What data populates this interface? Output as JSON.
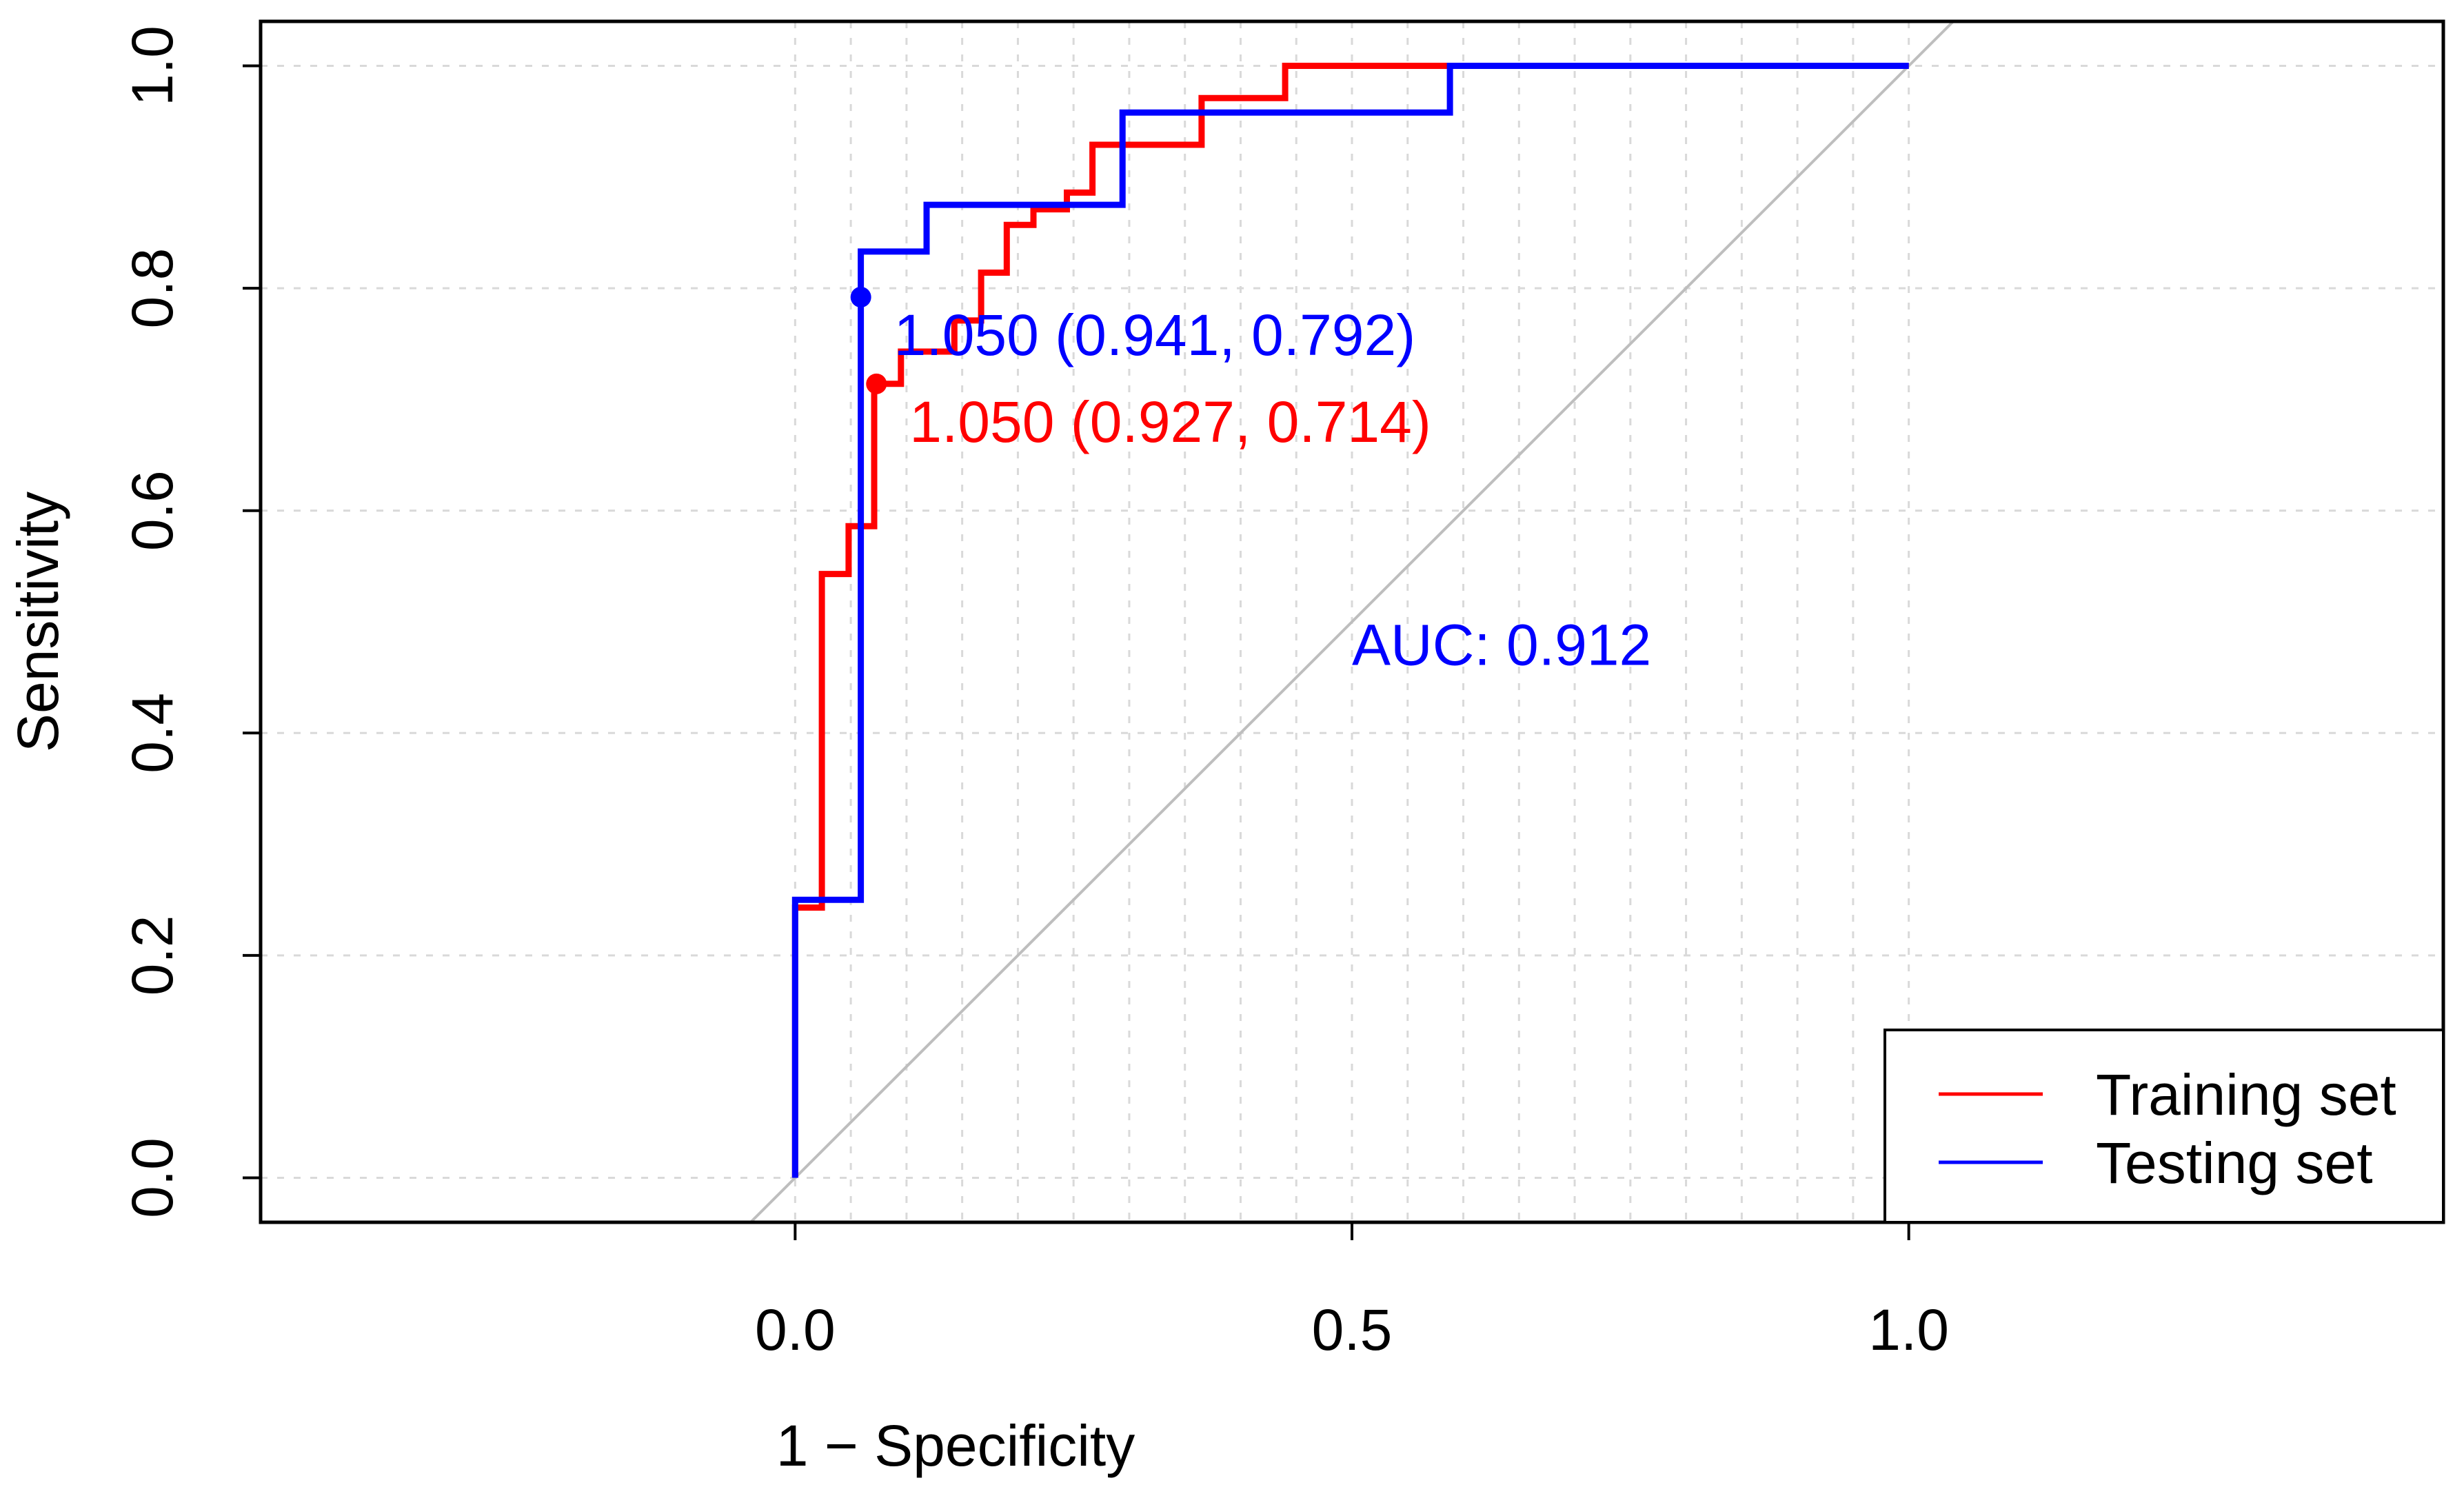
{
  "chart_data": {
    "type": "line",
    "title": "",
    "xlabel": "1 − Specificity",
    "ylabel": "Sensitivity",
    "xlim": [
      -0.48,
      1.48
    ],
    "ylim": [
      -0.04,
      1.04
    ],
    "x_ticks": [
      {
        "value": 0.0,
        "label": "0.0"
      },
      {
        "value": 0.5,
        "label": "0.5"
      },
      {
        "value": 1.0,
        "label": "1.0"
      }
    ],
    "y_ticks": [
      {
        "value": 0.0,
        "label": "0.0"
      },
      {
        "value": 0.2,
        "label": "0.2"
      },
      {
        "value": 0.4,
        "label": "0.4"
      },
      {
        "value": 0.6,
        "label": "0.6"
      },
      {
        "value": 0.8,
        "label": "0.8"
      },
      {
        "value": 1.0,
        "label": "1.0"
      }
    ],
    "grid": true,
    "grid_x": [
      0.0,
      0.05,
      0.1,
      0.15,
      0.2,
      0.25,
      0.3,
      0.35,
      0.4,
      0.45,
      0.5,
      0.55,
      0.6,
      0.65,
      0.7,
      0.75,
      0.8,
      0.85,
      0.9,
      0.95,
      1.0
    ],
    "grid_y": [
      0.0,
      0.2,
      0.4,
      0.6,
      0.8,
      1.0
    ],
    "reference_line": {
      "name": "chance diagonal",
      "color": "#bebebe",
      "points": [
        [
          -0.1,
          -0.1
        ],
        [
          1.1,
          1.1
        ]
      ]
    },
    "series": [
      {
        "name": "Training set",
        "color": "#ff0000",
        "points": [
          [
            0.0,
            0.0
          ],
          [
            0.0,
            0.243
          ],
          [
            0.024,
            0.243
          ],
          [
            0.024,
            0.543
          ],
          [
            0.048,
            0.543
          ],
          [
            0.048,
            0.586
          ],
          [
            0.071,
            0.586
          ],
          [
            0.071,
            0.714
          ],
          [
            0.083,
            0.714
          ],
          [
            0.095,
            0.714
          ],
          [
            0.095,
            0.743
          ],
          [
            0.143,
            0.743
          ],
          [
            0.143,
            0.771
          ],
          [
            0.167,
            0.771
          ],
          [
            0.167,
            0.814
          ],
          [
            0.19,
            0.814
          ],
          [
            0.19,
            0.857
          ],
          [
            0.214,
            0.857
          ],
          [
            0.214,
            0.871
          ],
          [
            0.244,
            0.871
          ],
          [
            0.244,
            0.886
          ],
          [
            0.267,
            0.886
          ],
          [
            0.267,
            0.929
          ],
          [
            0.365,
            0.929
          ],
          [
            0.365,
            0.971
          ],
          [
            0.44,
            0.971
          ],
          [
            0.44,
            1.0
          ],
          [
            1.0,
            1.0
          ]
        ],
        "cutoff": {
          "x": 0.073,
          "y": 0.714,
          "label": "1.050 (0.927, 0.714)"
        }
      },
      {
        "name": "Testing set",
        "color": "#0000ff",
        "points": [
          [
            0.0,
            0.0
          ],
          [
            0.0,
            0.25
          ],
          [
            0.059,
            0.25
          ],
          [
            0.059,
            0.833
          ],
          [
            0.118,
            0.833
          ],
          [
            0.118,
            0.875
          ],
          [
            0.294,
            0.875
          ],
          [
            0.294,
            0.958
          ],
          [
            0.588,
            0.958
          ],
          [
            0.588,
            1.0
          ],
          [
            1.0,
            1.0
          ]
        ],
        "cutoff": {
          "x": 0.059,
          "y": 0.792,
          "label": "1.050 (0.941, 0.792)"
        }
      }
    ],
    "annotations": [
      {
        "text": "AUC: 0.912",
        "x": 0.5,
        "y": 0.48,
        "color": "#0000ff"
      }
    ],
    "legend": {
      "position": "bottom-right",
      "entries": [
        {
          "label": "Training set",
          "color": "#ff0000"
        },
        {
          "label": "Testing set",
          "color": "#0000ff"
        }
      ]
    }
  }
}
